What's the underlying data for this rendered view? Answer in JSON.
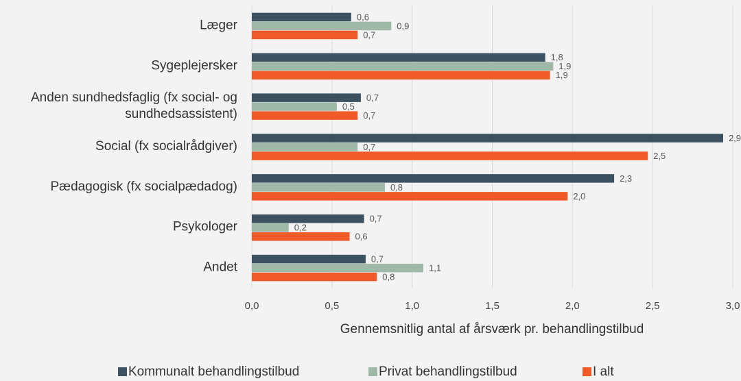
{
  "chart_data": {
    "type": "barh",
    "categories": [
      "Læger",
      "Sygeplejersker",
      "Anden sundhedsfaglig (fx social- og sundhedsassistent)",
      "Social (fx socialrådgiver)",
      "Pædagogisk (fx socialpædadog)",
      "Psykologer",
      "Andet"
    ],
    "series": [
      {
        "name": "Kommunalt behandlingstilbud",
        "color": "#3d5260",
        "values": [
          0.62,
          1.83,
          0.68,
          2.94,
          2.26,
          0.7,
          0.71
        ],
        "value_labels": [
          "0,6",
          "1,8",
          "0,7",
          "2,9",
          "2,3",
          "0,7",
          "0,7"
        ]
      },
      {
        "name": "Privat behandlingstilbud",
        "color": "#9fb8a8",
        "values": [
          0.87,
          1.88,
          0.53,
          0.66,
          0.83,
          0.23,
          1.07
        ],
        "value_labels": [
          "0,9",
          "1,9",
          "0,5",
          "0,7",
          "0,8",
          "0,2",
          "1,1"
        ]
      },
      {
        "name": "I alt",
        "color": "#f05a28",
        "values": [
          0.66,
          1.86,
          0.66,
          2.47,
          1.97,
          0.61,
          0.78
        ],
        "value_labels": [
          "0,7",
          "1,9",
          "0,7",
          "2,5",
          "2,0",
          "0,6",
          "0,8"
        ]
      }
    ],
    "xlabel": "Gennemsnitlig antal af årsværk pr. behandlingstilbud",
    "xlim": [
      0,
      3
    ],
    "xticks": [
      {
        "value": 0,
        "label": "0,0"
      },
      {
        "value": 0.5,
        "label": "0,5"
      },
      {
        "value": 1,
        "label": "1,0"
      },
      {
        "value": 1.5,
        "label": "1,5"
      },
      {
        "value": 2,
        "label": "2,0"
      },
      {
        "value": 2.5,
        "label": "2,5"
      },
      {
        "value": 3,
        "label": "3,0"
      }
    ],
    "grid": true,
    "legend": "bottom"
  }
}
